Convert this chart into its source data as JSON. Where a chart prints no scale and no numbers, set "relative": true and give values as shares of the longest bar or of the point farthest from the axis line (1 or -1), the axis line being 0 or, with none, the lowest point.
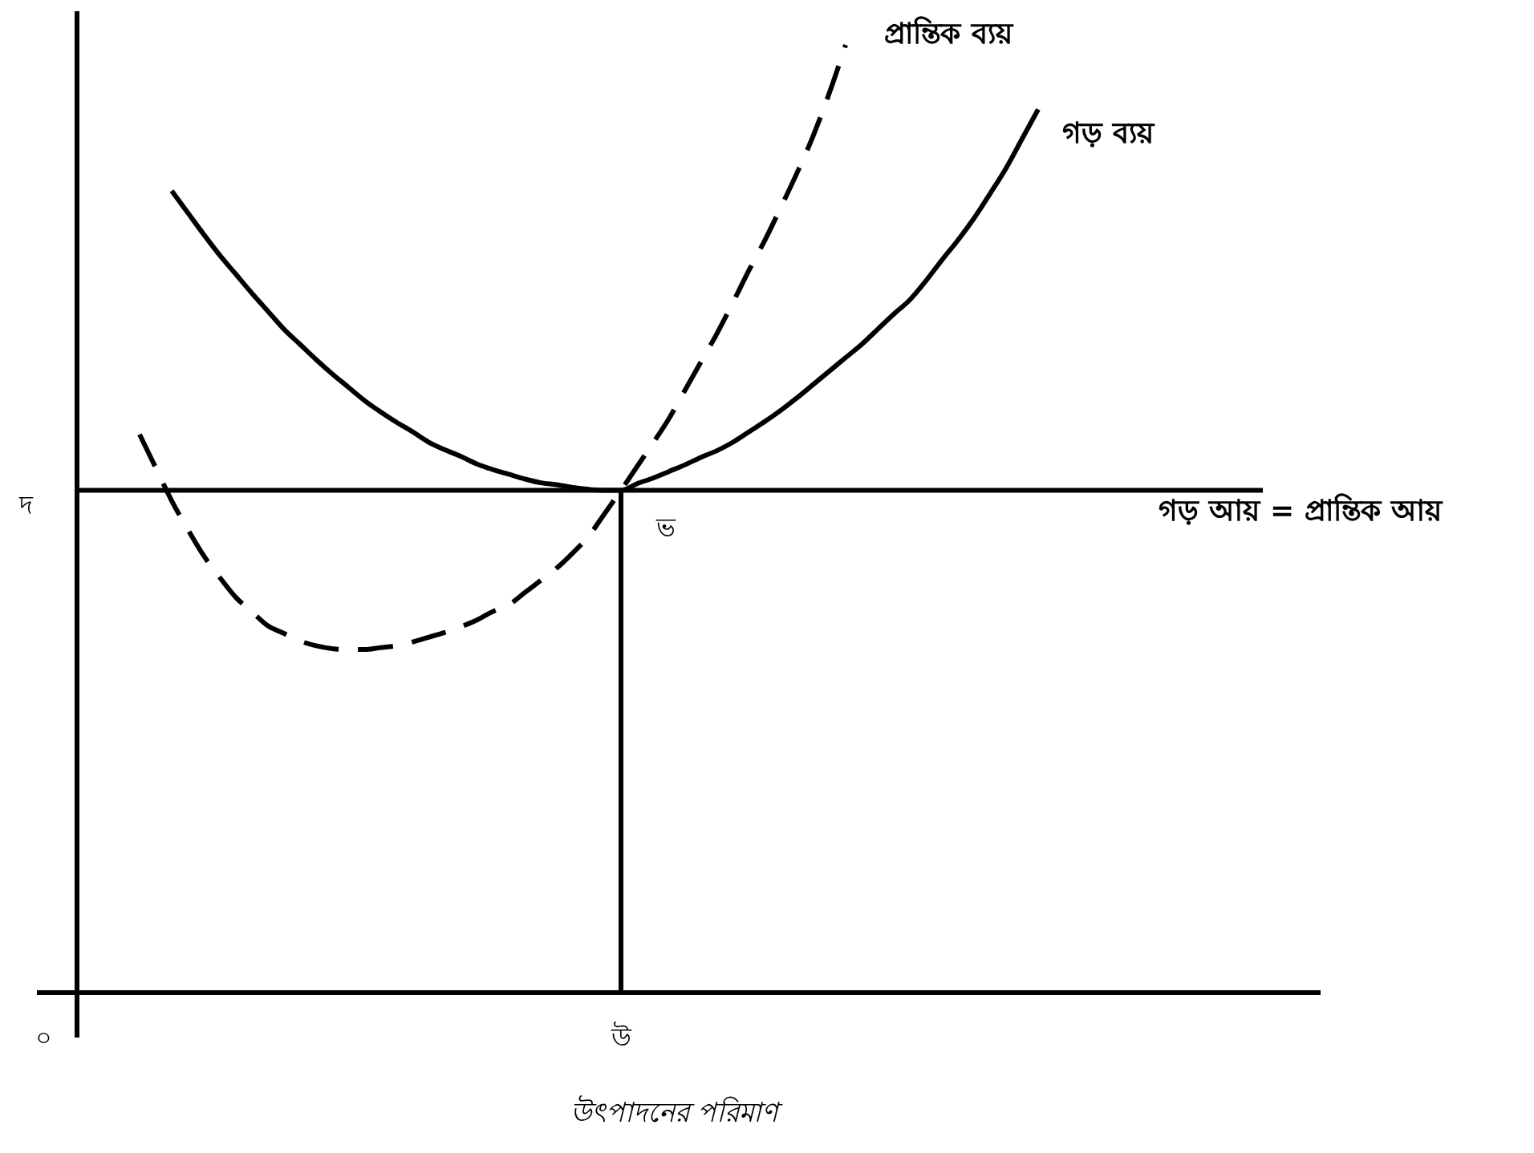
{
  "chart_data": {
    "type": "line",
    "relative": true,
    "xlabel": "উৎপাদনের পরিমাণ",
    "line_style": "solid",
    "categories": [
      "০",
      null,
      null,
      null,
      null,
      null,
      null,
      null,
      null,
      null,
      null,
      null,
      null,
      null,
      null,
      null,
      null,
      null,
      null,
      null,
      null,
      null,
      null,
      null,
      null,
      null,
      null,
      null,
      null,
      null,
      null,
      null,
      null,
      null,
      null,
      null,
      "উ",
      null,
      null,
      null,
      null,
      null,
      null,
      null,
      null,
      null,
      null,
      null,
      null,
      null,
      null,
      null,
      null,
      null,
      null,
      null,
      null,
      null,
      null,
      null,
      null,
      null,
      null,
      null,
      null,
      null,
      null,
      null,
      null,
      null,
      null,
      null,
      null,
      null,
      null,
      null,
      null
    ],
    "series": [
      {
        "name": "প্রান্তিক ব্যয়",
        "color": "#000000",
        "line_style": "dashed",
        "values": [
          null,
          null,
          null,
          null,
          null,
          null,
          0.589,
          0.554,
          0.519,
          0.489,
          0.461,
          0.438,
          0.417,
          0.402,
          0.387,
          0.379,
          0.371,
          0.366,
          0.363,
          0.362,
          0.362,
          0.364,
          0.366,
          0.37,
          0.375,
          0.38,
          0.386,
          0.393,
          0.402,
          0.409,
          0.422,
          0.435,
          0.448,
          0.464,
          0.482,
          0.506,
          0.53,
          0.555,
          0.58,
          0.606,
          0.636,
          0.666,
          0.696,
          0.729,
          0.763,
          0.795,
          0.83,
          0.866,
          0.905,
          0.95,
          1.0,
          null,
          null,
          null,
          null,
          null,
          null,
          null,
          null,
          null,
          null,
          null,
          null,
          null,
          null,
          null,
          null,
          null,
          null,
          null,
          null,
          null,
          null,
          null,
          null,
          null,
          null
        ]
      },
      {
        "name": "গড় ব্যয়",
        "color": "#000000",
        "values": [
          null,
          null,
          null,
          null,
          null,
          null,
          null,
          null,
          0.846,
          0.823,
          0.8,
          0.778,
          0.758,
          0.738,
          0.719,
          0.7,
          0.684,
          0.668,
          0.653,
          0.639,
          0.625,
          0.613,
          0.602,
          0.592,
          0.581,
          0.573,
          0.566,
          0.558,
          0.552,
          0.547,
          0.542,
          0.538,
          0.536,
          0.533,
          0.531,
          0.53,
          0.53,
          0.537,
          0.543,
          0.55,
          0.557,
          0.565,
          0.572,
          0.581,
          0.592,
          0.603,
          0.615,
          0.628,
          0.642,
          0.656,
          0.67,
          0.684,
          0.7,
          0.716,
          0.731,
          0.751,
          0.773,
          0.794,
          0.817,
          0.843,
          0.87,
          0.901,
          0.932,
          null,
          null,
          null,
          null,
          null,
          null,
          null,
          null,
          null,
          null,
          null,
          null,
          null,
          null
        ]
      },
      {
        "name": "গড় আয় = প্রান্তিক আয়",
        "color": "#000000",
        "values": [
          null,
          null,
          0.53,
          0.53,
          0.53,
          0.53,
          0.53,
          0.53,
          0.53,
          0.53,
          0.53,
          0.53,
          0.53,
          0.53,
          0.53,
          0.53,
          0.53,
          0.53,
          0.53,
          0.53,
          0.53,
          0.53,
          0.53,
          0.53,
          0.53,
          0.53,
          0.53,
          0.53,
          0.53,
          0.53,
          0.53,
          0.53,
          0.53,
          0.53,
          0.53,
          0.53,
          0.53,
          0.53,
          0.53,
          0.53,
          0.53,
          0.53,
          0.53,
          0.53,
          0.53,
          0.53,
          0.53,
          0.53,
          0.53,
          0.53,
          0.53,
          0.53,
          0.53,
          0.53,
          0.53,
          0.53,
          0.53,
          0.53,
          0.53,
          0.53,
          0.53,
          0.53,
          0.53,
          0.53,
          0.53,
          0.53,
          0.53,
          0.53,
          0.53,
          0.53,
          0.53,
          0.53,
          0.53,
          0.53,
          0.53,
          0.53,
          0.53
        ]
      },
      {
        "type": "bar",
        "color": "#000000",
        "values": [
          null,
          null,
          null,
          null,
          null,
          null,
          null,
          null,
          null,
          null,
          null,
          null,
          null,
          null,
          null,
          null,
          null,
          null,
          null,
          null,
          null,
          null,
          null,
          null,
          null,
          null,
          null,
          null,
          null,
          null,
          null,
          null,
          null,
          null,
          null,
          null,
          0.53,
          null,
          null,
          null,
          null,
          null,
          null,
          null,
          null,
          null,
          null,
          null,
          null,
          null,
          null,
          null,
          null,
          null,
          null,
          null,
          null,
          null,
          null,
          null,
          null,
          null,
          null,
          null,
          null,
          null,
          null,
          null,
          null,
          null,
          null,
          null,
          null,
          null,
          null,
          null,
          null
        ]
      }
    ],
    "annotations": [
      "দ",
      "ভ"
    ]
  }
}
